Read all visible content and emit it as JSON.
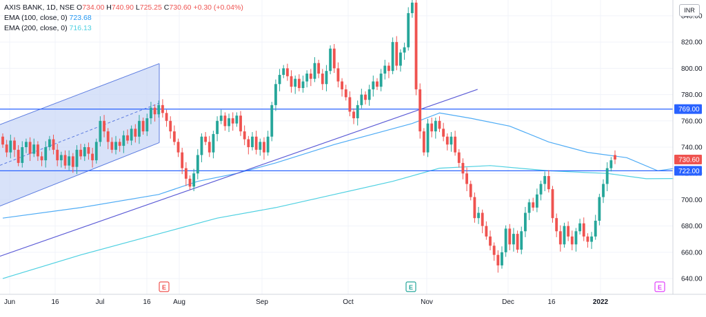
{
  "legend": {
    "symbol": "AXIS BANK, 1D, NSE",
    "o_label": "O",
    "o": "734.00",
    "h_label": "H",
    "h": "740.90",
    "l_label": "L",
    "l": "725.25",
    "c_label": "C",
    "c": "730.60",
    "change": "+0.30 (+0.04%)",
    "ema100_label": "EMA (100, close, 0)",
    "ema100_value": "723.68",
    "ema200_label": "EMA (200, close, 0)",
    "ema200_value": "716.13"
  },
  "currency": "INR",
  "earnings_markers": [
    "E",
    "E",
    "E"
  ],
  "colors": {
    "up": "#26a69a",
    "down": "#ef5350",
    "ema100": "#2196f3",
    "ema200": "#4dd0e1",
    "hline": "#2962ff",
    "trendline": "#5b5bd6",
    "channel_fill": "#c7d5f7"
  },
  "chart_data": {
    "type": "candlestick",
    "y_axis": {
      "range": [
        628,
        852
      ],
      "ticks": [
        640,
        660,
        680,
        700,
        720,
        740,
        760,
        780,
        800,
        820,
        840
      ]
    },
    "x_axis": {
      "labels": [
        "Jun",
        "16",
        "Jul",
        "16",
        "Aug",
        "Sep",
        "Oct",
        "Nov",
        "Dec",
        "16",
        "2022"
      ]
    },
    "price_labels": {
      "last": "730.60",
      "level_769": "769.00",
      "level_722": "722.00"
    },
    "horizontal_levels": [
      769,
      722
    ],
    "candles": [
      {
        "o": 748,
        "c": 742
      },
      {
        "o": 742,
        "c": 736
      },
      {
        "o": 736,
        "c": 745
      },
      {
        "o": 745,
        "c": 738
      },
      {
        "o": 738,
        "c": 728
      },
      {
        "o": 728,
        "c": 740
      },
      {
        "o": 740,
        "c": 744
      },
      {
        "o": 744,
        "c": 735
      },
      {
        "o": 735,
        "c": 742
      },
      {
        "o": 742,
        "c": 733
      },
      {
        "o": 733,
        "c": 730
      },
      {
        "o": 730,
        "c": 740
      },
      {
        "o": 740,
        "c": 746
      },
      {
        "o": 746,
        "c": 738
      },
      {
        "o": 738,
        "c": 730
      },
      {
        "o": 730,
        "c": 734
      },
      {
        "o": 734,
        "c": 726
      },
      {
        "o": 726,
        "c": 733
      },
      {
        "o": 733,
        "c": 725
      },
      {
        "o": 725,
        "c": 738
      },
      {
        "o": 738,
        "c": 733
      },
      {
        "o": 733,
        "c": 740
      },
      {
        "o": 740,
        "c": 735
      },
      {
        "o": 735,
        "c": 730
      },
      {
        "o": 730,
        "c": 744
      },
      {
        "o": 744,
        "c": 760
      },
      {
        "o": 760,
        "c": 752
      },
      {
        "o": 752,
        "c": 744
      },
      {
        "o": 744,
        "c": 738
      },
      {
        "o": 738,
        "c": 744
      },
      {
        "o": 744,
        "c": 741
      },
      {
        "o": 741,
        "c": 749
      },
      {
        "o": 749,
        "c": 745
      },
      {
        "o": 745,
        "c": 754
      },
      {
        "o": 754,
        "c": 748
      },
      {
        "o": 748,
        "c": 760
      },
      {
        "o": 760,
        "c": 752
      },
      {
        "o": 752,
        "c": 762
      },
      {
        "o": 762,
        "c": 770
      },
      {
        "o": 770,
        "c": 765
      },
      {
        "o": 765,
        "c": 772
      },
      {
        "o": 772,
        "c": 766
      },
      {
        "o": 766,
        "c": 760
      },
      {
        "o": 760,
        "c": 752
      },
      {
        "o": 752,
        "c": 744
      },
      {
        "o": 744,
        "c": 736
      },
      {
        "o": 736,
        "c": 724
      },
      {
        "o": 724,
        "c": 716
      },
      {
        "o": 716,
        "c": 710
      },
      {
        "o": 710,
        "c": 720
      },
      {
        "o": 720,
        "c": 734
      },
      {
        "o": 734,
        "c": 748
      },
      {
        "o": 748,
        "c": 744
      },
      {
        "o": 744,
        "c": 736
      },
      {
        "o": 736,
        "c": 750
      },
      {
        "o": 750,
        "c": 760
      },
      {
        "o": 760,
        "c": 764
      },
      {
        "o": 764,
        "c": 756
      },
      {
        "o": 756,
        "c": 762
      },
      {
        "o": 762,
        "c": 758
      },
      {
        "o": 758,
        "c": 764
      },
      {
        "o": 764,
        "c": 752
      },
      {
        "o": 752,
        "c": 746
      },
      {
        "o": 746,
        "c": 740
      },
      {
        "o": 740,
        "c": 748
      },
      {
        "o": 748,
        "c": 738
      },
      {
        "o": 738,
        "c": 744
      },
      {
        "o": 744,
        "c": 736
      },
      {
        "o": 736,
        "c": 748
      },
      {
        "o": 748,
        "c": 772
      },
      {
        "o": 772,
        "c": 788
      },
      {
        "o": 788,
        "c": 795
      },
      {
        "o": 795,
        "c": 800
      },
      {
        "o": 800,
        "c": 794
      },
      {
        "o": 794,
        "c": 786
      },
      {
        "o": 786,
        "c": 792
      },
      {
        "o": 792,
        "c": 785
      },
      {
        "o": 785,
        "c": 790
      },
      {
        "o": 790,
        "c": 796
      },
      {
        "o": 796,
        "c": 792
      },
      {
        "o": 792,
        "c": 804
      },
      {
        "o": 804,
        "c": 796
      },
      {
        "o": 796,
        "c": 788
      },
      {
        "o": 788,
        "c": 798
      },
      {
        "o": 798,
        "c": 815
      },
      {
        "o": 815,
        "c": 800
      },
      {
        "o": 800,
        "c": 790
      },
      {
        "o": 790,
        "c": 784
      },
      {
        "o": 784,
        "c": 778
      },
      {
        "o": 778,
        "c": 767
      },
      {
        "o": 767,
        "c": 762
      },
      {
        "o": 762,
        "c": 772
      },
      {
        "o": 772,
        "c": 780
      },
      {
        "o": 780,
        "c": 776
      },
      {
        "o": 776,
        "c": 784
      },
      {
        "o": 784,
        "c": 790
      },
      {
        "o": 790,
        "c": 786
      },
      {
        "o": 786,
        "c": 796
      },
      {
        "o": 796,
        "c": 802
      },
      {
        "o": 802,
        "c": 798
      },
      {
        "o": 798,
        "c": 820
      },
      {
        "o": 820,
        "c": 802
      },
      {
        "o": 802,
        "c": 812
      },
      {
        "o": 812,
        "c": 816
      },
      {
        "o": 816,
        "c": 842
      },
      {
        "o": 842,
        "c": 850
      },
      {
        "o": 850,
        "c": 784
      },
      {
        "o": 784,
        "c": 752
      },
      {
        "o": 752,
        "c": 736
      },
      {
        "o": 736,
        "c": 758
      },
      {
        "o": 758,
        "c": 752
      },
      {
        "o": 752,
        "c": 760
      },
      {
        "o": 760,
        "c": 754
      },
      {
        "o": 754,
        "c": 748
      },
      {
        "o": 748,
        "c": 742
      },
      {
        "o": 742,
        "c": 748
      },
      {
        "o": 748,
        "c": 736
      },
      {
        "o": 736,
        "c": 728
      },
      {
        "o": 728,
        "c": 720
      },
      {
        "o": 720,
        "c": 712
      },
      {
        "o": 712,
        "c": 702
      },
      {
        "o": 702,
        "c": 686
      },
      {
        "o": 686,
        "c": 690
      },
      {
        "o": 690,
        "c": 680
      },
      {
        "o": 680,
        "c": 672
      },
      {
        "o": 672,
        "c": 665
      },
      {
        "o": 665,
        "c": 658
      },
      {
        "o": 658,
        "c": 650
      },
      {
        "o": 650,
        "c": 660
      },
      {
        "o": 660,
        "c": 678
      },
      {
        "o": 678,
        "c": 666
      },
      {
        "o": 666,
        "c": 674
      },
      {
        "o": 674,
        "c": 662
      },
      {
        "o": 662,
        "c": 676
      },
      {
        "o": 676,
        "c": 690
      },
      {
        "o": 690,
        "c": 698
      },
      {
        "o": 698,
        "c": 694
      },
      {
        "o": 694,
        "c": 704
      },
      {
        "o": 704,
        "c": 712
      },
      {
        "o": 712,
        "c": 718
      },
      {
        "o": 718,
        "c": 708
      },
      {
        "o": 708,
        "c": 686
      },
      {
        "o": 686,
        "c": 676
      },
      {
        "o": 676,
        "c": 666
      },
      {
        "o": 666,
        "c": 680
      },
      {
        "o": 680,
        "c": 672
      },
      {
        "o": 672,
        "c": 666
      },
      {
        "o": 666,
        "c": 676
      },
      {
        "o": 676,
        "c": 682
      },
      {
        "o": 682,
        "c": 672
      },
      {
        "o": 672,
        "c": 668
      },
      {
        "o": 668,
        "c": 672
      },
      {
        "o": 672,
        "c": 684
      },
      {
        "o": 684,
        "c": 702
      },
      {
        "o": 702,
        "c": 712
      },
      {
        "o": 712,
        "c": 724
      },
      {
        "o": 724,
        "c": 730
      },
      {
        "o": 734,
        "c": 730.6
      }
    ],
    "ema100": [
      {
        "i": 0,
        "v": 686
      },
      {
        "i": 20,
        "v": 694
      },
      {
        "i": 40,
        "v": 704
      },
      {
        "i": 50,
        "v": 714
      },
      {
        "i": 60,
        "v": 720
      },
      {
        "i": 70,
        "v": 728
      },
      {
        "i": 85,
        "v": 742
      },
      {
        "i": 95,
        "v": 750
      },
      {
        "i": 105,
        "v": 758
      },
      {
        "i": 112,
        "v": 766
      },
      {
        "i": 120,
        "v": 762
      },
      {
        "i": 130,
        "v": 756
      },
      {
        "i": 140,
        "v": 744
      },
      {
        "i": 150,
        "v": 736
      },
      {
        "i": 160,
        "v": 732
      },
      {
        "i": 168,
        "v": 722
      },
      {
        "i": 172,
        "v": 723.68
      }
    ],
    "ema200": [
      {
        "i": 0,
        "v": 640
      },
      {
        "i": 20,
        "v": 658
      },
      {
        "i": 40,
        "v": 674
      },
      {
        "i": 55,
        "v": 686
      },
      {
        "i": 70,
        "v": 694
      },
      {
        "i": 85,
        "v": 704
      },
      {
        "i": 100,
        "v": 714
      },
      {
        "i": 112,
        "v": 724
      },
      {
        "i": 125,
        "v": 726
      },
      {
        "i": 140,
        "v": 722
      },
      {
        "i": 155,
        "v": 720
      },
      {
        "i": 165,
        "v": 716
      },
      {
        "i": 172,
        "v": 716.13
      }
    ],
    "trendline": [
      {
        "i": 0,
        "v": 657
      },
      {
        "i": 120,
        "v": 784
      }
    ],
    "channel": {
      "upper": [
        {
          "i": 0,
          "v": 758
        },
        {
          "i": 44,
          "v": 808
        }
      ],
      "lower": [
        {
          "i": 0,
          "v": 696
        },
        {
          "i": 44,
          "v": 748
        }
      ],
      "mid": [
        {
          "i": 0,
          "v": 727
        },
        {
          "i": 44,
          "v": 778
        }
      ]
    }
  }
}
